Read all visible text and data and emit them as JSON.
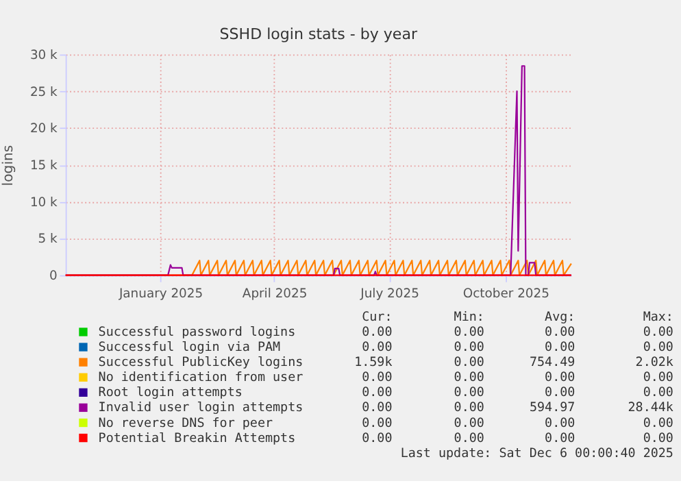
{
  "chart_data": {
    "type": "line",
    "title": "SSHD login stats - by year",
    "ylabel": "logins",
    "xlim": [
      "2024-11-01",
      "2025-12-06"
    ],
    "xticks": [
      {
        "value": "2025-01-15",
        "label": "January 2025"
      },
      {
        "value": "2025-04-15",
        "label": "April 2025"
      },
      {
        "value": "2025-07-15",
        "label": "July 2025"
      },
      {
        "value": "2025-10-15",
        "label": "October 2025"
      }
    ],
    "ylim": [
      0,
      30000
    ],
    "yticks": [
      0,
      {
        "value": 5000,
        "label": "5 k"
      },
      {
        "value": 10000,
        "label": "10 k"
      },
      {
        "value": 15000,
        "label": "15 k"
      },
      {
        "value": 20000,
        "label": "20 k"
      },
      {
        "value": 25000,
        "label": "25 k"
      },
      {
        "value": 30000,
        "label": "30 k"
      }
    ],
    "grid": true,
    "legend": "bottom",
    "line_style": "solid",
    "series": [
      {
        "name": "Successful password logins",
        "color": "#00cc00"
      },
      {
        "name": "Successful login via PAM",
        "color": "#0066b3"
      },
      {
        "name": "Successful PublicKey logins",
        "color": "#ff8000",
        "x": [
          "2024-11-01",
          "2025-02-09",
          "2025-02-15",
          "2025-02-16",
          "2025-02-22",
          "2025-02-23",
          "2025-03-01",
          "2025-03-02",
          "2025-03-08",
          "2025-03-09",
          "2025-03-15",
          "2025-03-16",
          "2025-03-22",
          "2025-03-23",
          "2025-03-29",
          "2025-03-30",
          "2025-04-05",
          "2025-04-06",
          "2025-04-12",
          "2025-04-13",
          "2025-04-19",
          "2025-04-20",
          "2025-04-26",
          "2025-04-27",
          "2025-05-03",
          "2025-05-04",
          "2025-05-10",
          "2025-05-11",
          "2025-05-17",
          "2025-05-18",
          "2025-05-24",
          "2025-05-25",
          "2025-05-31",
          "2025-06-01",
          "2025-06-07",
          "2025-06-08",
          "2025-06-14",
          "2025-06-15",
          "2025-06-21",
          "2025-06-22",
          "2025-06-28",
          "2025-06-29",
          "2025-07-05",
          "2025-07-06",
          "2025-07-12",
          "2025-07-13",
          "2025-07-19",
          "2025-07-20",
          "2025-07-26",
          "2025-07-27",
          "2025-08-02",
          "2025-08-03",
          "2025-08-09",
          "2025-08-10",
          "2025-08-16",
          "2025-08-17",
          "2025-08-23",
          "2025-08-24",
          "2025-08-30",
          "2025-08-31",
          "2025-09-06",
          "2025-09-07",
          "2025-09-13",
          "2025-09-14",
          "2025-09-20",
          "2025-09-21",
          "2025-09-27",
          "2025-09-28",
          "2025-10-04",
          "2025-10-05",
          "2025-10-11",
          "2025-10-12",
          "2025-10-18",
          "2025-10-19",
          "2025-10-25",
          "2025-10-26",
          "2025-11-01",
          "2025-11-02",
          "2025-11-08",
          "2025-11-09",
          "2025-11-15",
          "2025-11-16",
          "2025-11-22",
          "2025-11-23",
          "2025-11-29",
          "2025-11-30",
          "2025-12-06"
        ],
        "values": [
          0,
          0,
          2000,
          0,
          2000,
          0,
          2000,
          0,
          2000,
          0,
          2000,
          0,
          2000,
          0,
          2000,
          0,
          2000,
          0,
          2000,
          0,
          2000,
          0,
          2000,
          0,
          2000,
          0,
          2000,
          0,
          2000,
          0,
          2000,
          0,
          2000,
          0,
          2000,
          0,
          2000,
          0,
          2000,
          0,
          2000,
          0,
          2000,
          0,
          2000,
          0,
          2000,
          0,
          2000,
          0,
          2000,
          0,
          2000,
          0,
          2000,
          0,
          2000,
          0,
          2000,
          0,
          2000,
          0,
          2000,
          0,
          2000,
          0,
          2000,
          0,
          2000,
          0,
          2000,
          0,
          2020,
          0,
          2000,
          0,
          2000,
          0,
          2000,
          0,
          2000,
          0,
          2000,
          0,
          2000,
          0,
          1590
        ]
      },
      {
        "name": "No identification from user",
        "color": "#ffcc00"
      },
      {
        "name": "Root login attempts",
        "color": "#330099"
      },
      {
        "name": "Invalid user login attempts",
        "color": "#990099",
        "x": [
          "2024-11-01",
          "2025-01-21",
          "2025-01-23",
          "2025-01-24",
          "2025-02-01",
          "2025-02-02",
          "2025-06-01",
          "2025-06-02",
          "2025-06-05",
          "2025-06-06",
          "2025-07-03",
          "2025-07-04",
          "2025-07-05",
          "2025-10-19",
          "2025-10-24",
          "2025-10-25",
          "2025-10-28",
          "2025-10-30",
          "2025-10-31",
          "2025-11-02",
          "2025-11-03",
          "2025-11-07",
          "2025-11-08",
          "2025-12-06"
        ],
        "values": [
          0,
          0,
          1400,
          1000,
          1000,
          0,
          0,
          900,
          900,
          0,
          0,
          500,
          0,
          0,
          25000,
          3300,
          28440,
          28440,
          0,
          0,
          1700,
          1700,
          0,
          0
        ]
      },
      {
        "name": "No reverse DNS for peer",
        "color": "#ccff00"
      },
      {
        "name": "Potential Breakin Attempts",
        "color": "#ff0000",
        "x": [
          "2024-11-01",
          "2025-12-06"
        ],
        "values": [
          0,
          0
        ]
      }
    ],
    "annotations": [
      "Cur:",
      "Min:",
      "Avg:",
      "Max:",
      "0.00",
      "0.00",
      "0.00",
      "0.00",
      "0.00",
      "0.00",
      "0.00",
      "0.00",
      "1.59k",
      "0.00",
      "754.49",
      "2.02k",
      "0.00",
      "0.00",
      "0.00",
      "0.00",
      "0.00",
      "0.00",
      "0.00",
      "0.00",
      "0.00",
      "0.00",
      "594.97",
      "28.44k",
      "0.00",
      "0.00",
      "0.00",
      "0.00",
      "0.00",
      "0.00",
      "0.00",
      "0.00",
      "Last update: Sat Dec  6 00:00:40 2025"
    ]
  }
}
